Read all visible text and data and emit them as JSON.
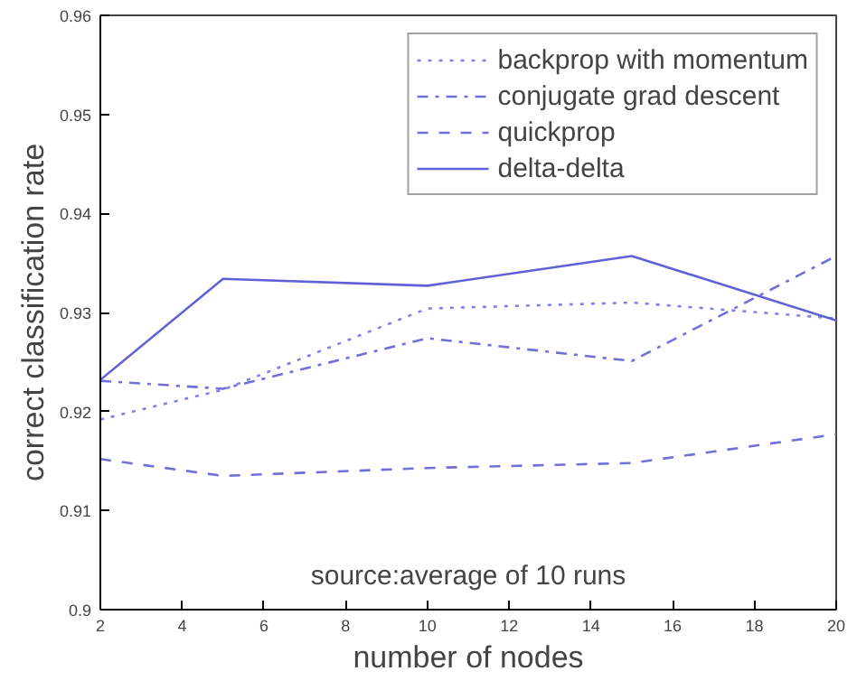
{
  "chart_data": {
    "type": "line",
    "xlabel": "number of nodes",
    "ylabel": "correct classification rate",
    "x": [
      2,
      5,
      10,
      15,
      20
    ],
    "series": [
      {
        "name": "backprop with momentum",
        "color": "#8080e8",
        "line_style": "dotted",
        "values": [
          0.9192,
          0.9222,
          0.9304,
          0.931,
          0.9294
        ]
      },
      {
        "name": "conjugate grad descent",
        "color": "#7070d8",
        "line_style": "dashdot",
        "values": [
          0.9231,
          0.9223,
          0.9274,
          0.9251,
          0.9357
        ]
      },
      {
        "name": "quickprop",
        "color": "#7070d8",
        "line_style": "dashed",
        "values": [
          0.9152,
          0.9135,
          0.9143,
          0.9148,
          0.9177
        ]
      },
      {
        "name": "delta-delta",
        "color": "#6060d8",
        "line_style": "solid",
        "values": [
          0.9232,
          0.9334,
          0.9327,
          0.9357,
          0.9292
        ]
      }
    ],
    "xlim": [
      2,
      20
    ],
    "ylim": [
      0.9,
      0.96
    ],
    "xticks": [
      2,
      4,
      6,
      8,
      10,
      12,
      14,
      16,
      18,
      20
    ],
    "yticks": [
      0.9,
      0.91,
      0.92,
      0.93,
      0.94,
      0.95,
      0.96
    ],
    "legend": "top right",
    "grid": false,
    "annotations": [
      "source:average of 10 runs"
    ]
  }
}
